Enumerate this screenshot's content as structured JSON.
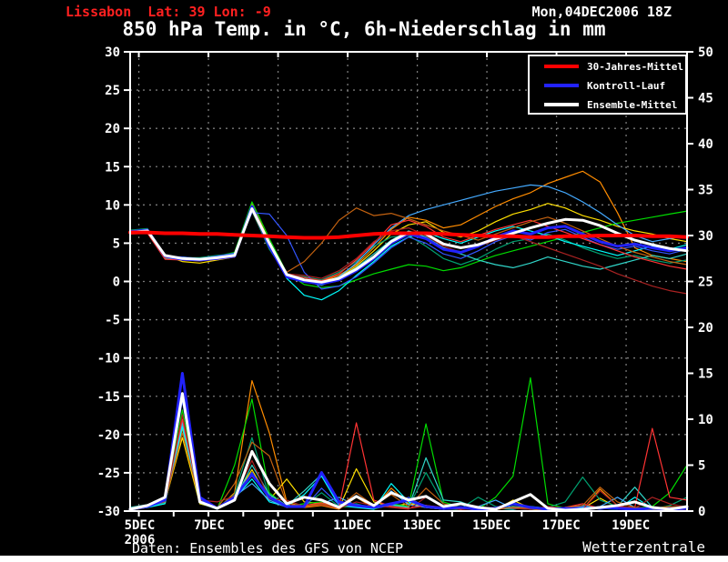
{
  "header": {
    "location": "Lissabon  Lat: 39 Lon: -9",
    "run": "Mon,04DEC2006 18Z",
    "title": "850 hPa Temp. in °C, 6h-Niederschlag in mm"
  },
  "legend": {
    "items": [
      {
        "label": "30-Jahres-Mittel",
        "color": "#ff0000"
      },
      {
        "label": "Kontroll-Lauf",
        "color": "#2222ff"
      },
      {
        "label": "Ensemble-Mittel",
        "color": "#ffffff"
      }
    ]
  },
  "footer": {
    "credit": "Daten: Ensembles des GFS von NCEP",
    "brand": "Wetterzentrale"
  },
  "chart_data": {
    "type": "line",
    "title": "850 hPa Temp. in °C, 6h-Niederschlag in mm",
    "x_unit": "days since Mon 04DEC2006 18Z",
    "xlim_days": [
      0,
      16
    ],
    "x_step": 0.5,
    "ylim_temp": [
      -30,
      30
    ],
    "ylim_precip": [
      0,
      50
    ],
    "grid": true,
    "axis_color": "#ffffff",
    "grid_color": "#7a7a7a",
    "left_ticks": [
      30,
      25,
      20,
      15,
      10,
      5,
      0,
      -5,
      -10,
      -15,
      -20,
      -25,
      -30
    ],
    "right_ticks": [
      50,
      45,
      40,
      35,
      30,
      25,
      20,
      15,
      10,
      5,
      0
    ],
    "x_major_ticks": [
      {
        "t": 0.25,
        "label": "5DEC"
      },
      {
        "t": 2.25,
        "label": "7DEC"
      },
      {
        "t": 4.25,
        "label": "9DEC"
      },
      {
        "t": 6.25,
        "label": "11DEC"
      },
      {
        "t": 8.25,
        "label": "13DEC"
      },
      {
        "t": 10.25,
        "label": "15DEC"
      },
      {
        "t": 12.25,
        "label": "17DEC"
      },
      {
        "t": 14.25,
        "label": "19DEC"
      }
    ],
    "x_year_label": "2006",
    "x_minor_start": 0.25,
    "x_minor_step": 1,
    "x_minor_count": 16,
    "main_series": {
      "mean_30yr": {
        "name": "30-Jahres-Mittel",
        "color": "#ff0000",
        "width": 4,
        "temp": [
          6.4,
          6.4,
          6.3,
          6.3,
          6.2,
          6.2,
          6.1,
          6.0,
          5.9,
          5.8,
          5.7,
          5.7,
          5.8,
          6.0,
          6.2,
          6.3,
          6.3,
          6.3,
          6.2,
          6.1,
          6.0,
          5.9,
          5.9,
          5.8,
          5.8,
          5.9,
          5.9,
          6.0,
          6.0,
          6.0,
          5.9,
          5.9,
          5.8
        ]
      },
      "control": {
        "name": "Kontroll-Lauf",
        "color": "#2222ff",
        "width": 3,
        "temp": [
          6.5,
          6.7,
          3.3,
          2.9,
          2.8,
          3.0,
          3.3,
          9.8,
          4.6,
          0.6,
          0.0,
          -0.3,
          0.2,
          1.4,
          3.0,
          5.0,
          6.2,
          5.6,
          4.2,
          3.8,
          4.6,
          5.8,
          6.6,
          6.2,
          7.0,
          7.2,
          6.2,
          5.2,
          4.6,
          4.9,
          4.4,
          4.0,
          4.4
        ],
        "precip": [
          0.2,
          0.5,
          1.2,
          15.0,
          1.5,
          0.3,
          1.5,
          4.0,
          1.5,
          0.5,
          0.5,
          4.2,
          1.0,
          0.6,
          0.4,
          0.8,
          1.2,
          0.5,
          0.3,
          0.4,
          0.2,
          0.3,
          0.8,
          0.4,
          0.2,
          0.3,
          0.2,
          0.4,
          0.3,
          0.2,
          0.3,
          0.2,
          0.3
        ]
      },
      "ensemble_mean": {
        "name": "Ensemble-Mittel",
        "color": "#ffffff",
        "width": 3,
        "temp": [
          6.4,
          6.6,
          3.4,
          3.0,
          2.9,
          3.1,
          3.4,
          9.5,
          5.0,
          0.9,
          0.2,
          -0.1,
          0.4,
          1.6,
          3.2,
          5.2,
          6.4,
          6.2,
          4.9,
          4.4,
          4.8,
          5.6,
          6.3,
          7.0,
          7.6,
          8.1,
          8.0,
          7.3,
          6.3,
          5.4,
          4.8,
          4.3,
          4.0
        ],
        "precip": [
          0.2,
          0.6,
          1.5,
          12.8,
          1.0,
          0.3,
          1.2,
          6.5,
          3.0,
          0.8,
          1.5,
          1.2,
          0.4,
          1.6,
          0.6,
          2.0,
          1.2,
          1.6,
          0.5,
          0.8,
          0.4,
          0.2,
          1.0,
          1.8,
          0.3,
          0.1,
          0.2,
          0.4,
          0.6,
          1.0,
          0.4,
          0.2,
          0.5
        ]
      }
    },
    "members": [
      {
        "color": "#ff8c00",
        "temp": [
          6.3,
          6.4,
          3.0,
          2.8,
          2.7,
          3.0,
          3.6,
          10.2,
          5.2,
          0.9,
          0.3,
          0.0,
          0.8,
          2.2,
          4.4,
          6.8,
          8.4,
          8.0,
          7.0,
          7.4,
          8.6,
          9.8,
          10.8,
          11.6,
          12.8,
          13.6,
          14.4,
          13.0,
          9.0,
          4.4,
          3.4,
          3.0,
          2.6
        ],
        "precip": [
          0.2,
          0.5,
          0.8,
          9.0,
          1.0,
          0.2,
          2.0,
          14.2,
          8.5,
          1.0,
          0.4,
          0.6,
          0.2,
          1.5,
          0.3,
          2.5,
          0.8,
          0.4,
          0.2,
          0.3,
          0.1,
          0.2,
          0.4,
          0.2,
          0.1,
          0.3,
          0.2,
          2.4,
          0.6,
          0.2,
          0.3,
          0.1,
          0.2
        ]
      },
      {
        "color": "#ffe000",
        "temp": [
          6.6,
          6.8,
          3.4,
          2.6,
          2.4,
          2.8,
          3.2,
          9.4,
          4.4,
          0.5,
          0.1,
          -0.4,
          0.6,
          2.0,
          4.0,
          6.2,
          7.4,
          7.8,
          6.4,
          5.8,
          6.6,
          7.8,
          8.8,
          9.4,
          10.2,
          9.6,
          8.6,
          8.0,
          7.2,
          6.6,
          6.2,
          5.6,
          5.2
        ],
        "precip": [
          0.1,
          0.4,
          1.0,
          8.0,
          0.8,
          0.3,
          1.5,
          4.5,
          1.2,
          3.5,
          1.0,
          0.8,
          0.3,
          4.6,
          1.0,
          0.5,
          0.8,
          0.6,
          0.3,
          0.2,
          0.4,
          0.1,
          1.2,
          0.3,
          0.2,
          0.1,
          0.3,
          1.4,
          0.4,
          0.2,
          0.1,
          0.3,
          0.2
        ]
      },
      {
        "color": "#00dd00",
        "temp": [
          6.4,
          6.5,
          3.1,
          3.2,
          3.0,
          3.3,
          3.8,
          10.4,
          5.6,
          1.1,
          -0.4,
          -0.8,
          -0.6,
          0.2,
          1.0,
          1.6,
          2.2,
          2.0,
          1.4,
          1.8,
          2.6,
          3.4,
          4.0,
          4.6,
          5.2,
          5.8,
          6.4,
          7.0,
          7.6,
          8.0,
          8.4,
          8.8,
          9.2
        ],
        "precip": [
          0.3,
          0.6,
          1.2,
          11.0,
          1.5,
          0.2,
          5.0,
          12.2,
          2.0,
          0.5,
          0.8,
          1.0,
          0.4,
          0.6,
          0.2,
          0.8,
          0.5,
          9.5,
          1.0,
          0.4,
          0.2,
          1.5,
          3.8,
          14.5,
          0.8,
          0.3,
          0.2,
          0.4,
          0.6,
          0.3,
          0.5,
          2.0,
          5.0
        ]
      },
      {
        "color": "#00a070",
        "temp": [
          6.7,
          6.9,
          3.3,
          3.1,
          3.1,
          3.4,
          3.6,
          9.2,
          4.2,
          0.8,
          0.6,
          0.2,
          1.2,
          2.6,
          4.6,
          5.8,
          6.0,
          4.6,
          3.0,
          2.2,
          3.0,
          4.2,
          5.2,
          5.6,
          6.2,
          5.4,
          4.4,
          3.6,
          3.0,
          3.4,
          2.8,
          2.4,
          2.8
        ],
        "precip": [
          0.2,
          0.5,
          0.9,
          10.0,
          1.2,
          0.3,
          1.8,
          8.0,
          1.5,
          0.4,
          0.6,
          2.0,
          0.5,
          0.8,
          0.3,
          0.6,
          0.4,
          4.2,
          0.8,
          0.3,
          1.5,
          0.5,
          0.3,
          0.2,
          0.4,
          1.0,
          3.7,
          1.2,
          0.5,
          0.3,
          0.2,
          0.6,
          1.5
        ]
      },
      {
        "color": "#30d5c8",
        "temp": [
          6.3,
          6.4,
          3.0,
          2.9,
          2.8,
          3.0,
          3.3,
          9.5,
          4.6,
          0.6,
          0.0,
          -0.5,
          0.5,
          1.8,
          3.6,
          5.4,
          6.6,
          5.8,
          4.4,
          3.6,
          2.8,
          2.2,
          1.8,
          2.4,
          3.2,
          2.6,
          2.0,
          1.6,
          2.2,
          2.8,
          3.4,
          3.0,
          3.6
        ],
        "precip": [
          0.4,
          0.7,
          1.1,
          9.5,
          1.0,
          0.4,
          1.2,
          5.0,
          1.8,
          0.6,
          2.2,
          4.0,
          0.8,
          0.5,
          0.3,
          0.7,
          0.4,
          5.8,
          1.2,
          1.0,
          0.3,
          0.2,
          0.5,
          0.3,
          0.2,
          0.4,
          0.6,
          0.3,
          0.5,
          2.6,
          0.4,
          0.2,
          0.3
        ]
      },
      {
        "color": "#00ffff",
        "temp": [
          6.5,
          6.7,
          3.2,
          3.1,
          3.0,
          3.2,
          3.5,
          9.9,
          5.0,
          0.4,
          -1.8,
          -2.4,
          -1.2,
          0.8,
          2.6,
          4.6,
          5.8,
          6.4,
          5.6,
          5.0,
          5.8,
          6.6,
          7.2,
          6.6,
          6.0,
          5.2,
          4.6,
          4.0,
          3.4,
          4.0,
          4.6,
          4.2,
          4.8
        ],
        "precip": [
          0.2,
          0.4,
          0.8,
          9.2,
          0.9,
          0.2,
          1.4,
          3.5,
          1.0,
          0.5,
          1.8,
          3.8,
          0.6,
          0.4,
          0.2,
          3.0,
          1.0,
          0.5,
          0.3,
          0.2,
          0.4,
          0.3,
          0.2,
          0.5,
          0.3,
          0.2,
          0.4,
          0.3,
          0.2,
          1.5,
          0.3,
          0.2,
          0.4
        ]
      },
      {
        "color": "#44aaff",
        "temp": [
          6.4,
          6.6,
          3.1,
          3.0,
          2.9,
          3.1,
          3.4,
          9.6,
          4.7,
          0.8,
          0.2,
          -0.2,
          0.6,
          2.4,
          4.8,
          7.0,
          8.6,
          9.4,
          10.0,
          10.6,
          11.2,
          11.8,
          12.2,
          12.6,
          12.4,
          11.6,
          10.4,
          9.0,
          7.4,
          6.0,
          5.2,
          5.6,
          6.0
        ],
        "precip": [
          0.3,
          0.5,
          1.0,
          9.8,
          1.1,
          0.3,
          1.6,
          3.0,
          1.2,
          0.4,
          0.5,
          0.8,
          1.5,
          0.6,
          0.3,
          2.2,
          0.7,
          0.4,
          0.2,
          0.3,
          0.5,
          1.2,
          0.3,
          0.2,
          0.4,
          0.3,
          0.2,
          0.5,
          1.5,
          0.4,
          0.2,
          0.3,
          0.2
        ]
      },
      {
        "color": "#3355ff",
        "temp": [
          6.6,
          6.7,
          3.3,
          3.2,
          3.0,
          3.3,
          3.7,
          9.0,
          8.8,
          6.0,
          1.2,
          -1.0,
          -0.6,
          0.6,
          2.4,
          4.4,
          5.8,
          5.0,
          3.6,
          3.0,
          4.0,
          5.2,
          6.0,
          5.4,
          6.4,
          6.8,
          5.8,
          4.8,
          4.2,
          4.6,
          4.0,
          3.6,
          4.2
        ],
        "precip": [
          0.2,
          0.6,
          1.4,
          12.0,
          1.3,
          0.2,
          1.5,
          4.2,
          1.4,
          0.6,
          0.4,
          2.5,
          0.7,
          0.5,
          0.3,
          0.6,
          1.5,
          0.4,
          0.2,
          0.3,
          0.2,
          0.4,
          0.8,
          0.3,
          0.2,
          0.3,
          0.5,
          0.2,
          0.4,
          0.3,
          0.2,
          0.4,
          0.3
        ]
      },
      {
        "color": "#ff3333",
        "temp": [
          6.2,
          6.3,
          2.9,
          2.8,
          2.7,
          2.9,
          3.2,
          9.3,
          4.5,
          0.9,
          0.5,
          0.1,
          1.0,
          2.8,
          5.0,
          7.4,
          8.0,
          7.2,
          5.8,
          5.2,
          6.0,
          6.8,
          7.4,
          8.0,
          7.2,
          6.4,
          5.6,
          4.8,
          4.0,
          3.2,
          2.6,
          2.0,
          1.6
        ],
        "precip": [
          0.3,
          0.7,
          1.3,
          10.0,
          1.4,
          0.3,
          1.7,
          3.8,
          1.6,
          0.5,
          0.6,
          0.9,
          0.4,
          9.6,
          1.2,
          0.5,
          0.3,
          0.6,
          0.4,
          0.2,
          0.3,
          0.2,
          0.4,
          0.3,
          0.2,
          0.4,
          0.8,
          0.3,
          0.5,
          0.4,
          9.0,
          1.5,
          1.2
        ]
      },
      {
        "color": "#aa2222",
        "temp": [
          6.5,
          6.6,
          3.2,
          3.0,
          2.9,
          3.1,
          3.4,
          9.8,
          4.9,
          1.0,
          0.8,
          0.4,
          1.4,
          3.0,
          5.2,
          6.6,
          7.0,
          6.0,
          4.6,
          3.8,
          4.6,
          5.4,
          6.0,
          5.2,
          4.4,
          3.6,
          2.8,
          2.0,
          1.0,
          0.2,
          -0.6,
          -1.2,
          -1.6
        ],
        "precip": [
          0.2,
          0.5,
          1.1,
          10.5,
          1.2,
          1.0,
          1.6,
          5.5,
          1.3,
          1.2,
          0.5,
          0.7,
          0.3,
          1.0,
          0.6,
          0.4,
          0.2,
          1.5,
          0.5,
          0.3,
          0.2,
          0.4,
          0.3,
          0.2,
          0.5,
          0.3,
          0.2,
          2.2,
          0.6,
          0.3,
          1.5,
          0.8,
          0.4
        ]
      },
      {
        "color": "#c46210",
        "temp": [
          6.4,
          6.5,
          3.1,
          3.0,
          2.8,
          3.0,
          3.3,
          9.4,
          4.6,
          1.2,
          2.6,
          5.0,
          8.0,
          9.6,
          8.6,
          8.9,
          8.2,
          7.4,
          6.6,
          6.0,
          5.4,
          6.2,
          7.0,
          7.8,
          8.4,
          7.6,
          6.6,
          5.6,
          4.6,
          3.8,
          3.2,
          2.6,
          2.2
        ],
        "precip": [
          0.3,
          0.6,
          1.0,
          8.5,
          1.1,
          0.3,
          3.0,
          7.5,
          6.0,
          0.8,
          0.5,
          0.8,
          0.4,
          2.0,
          0.6,
          1.8,
          0.5,
          2.5,
          0.8,
          0.4,
          0.3,
          0.2,
          0.4,
          0.3,
          0.2,
          0.4,
          0.6,
          2.6,
          1.0,
          0.4,
          0.3,
          0.5,
          0.4
        ]
      }
    ]
  }
}
